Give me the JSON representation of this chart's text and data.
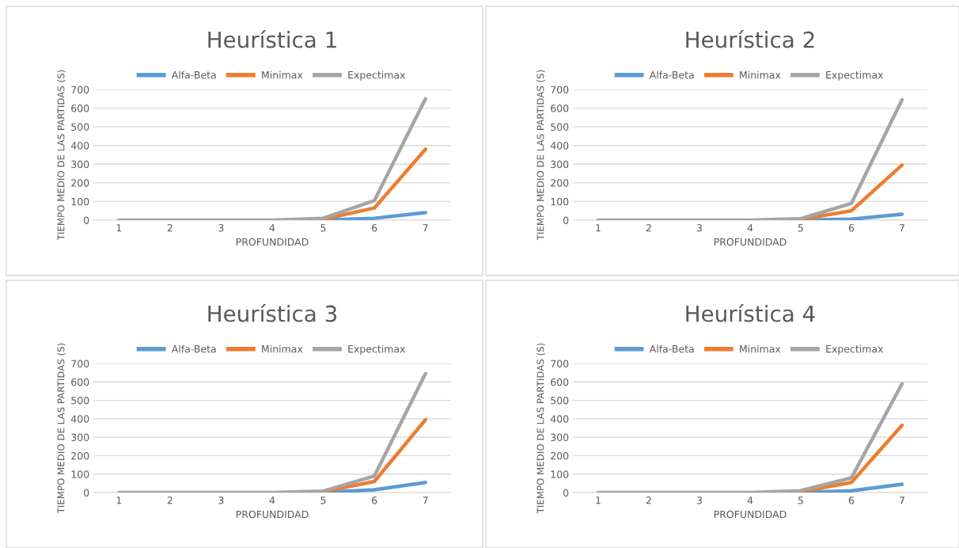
{
  "chart_data": [
    {
      "type": "line",
      "title": "Heurística 1",
      "xlabel": "PROFUNDIDAD",
      "ylabel": "TIEMPO MEDIO DE LAS PARTIDAS (S)",
      "categories": [
        "1",
        "2",
        "3",
        "4",
        "5",
        "6",
        "7"
      ],
      "ylim": [
        0,
        700
      ],
      "yticks": [
        0,
        100,
        200,
        300,
        400,
        500,
        600,
        700
      ],
      "grid": "y",
      "legend": "top",
      "marker": "none",
      "line_style": "solid",
      "series": [
        {
          "name": "Alfa-Beta",
          "color": "#5b9bd5",
          "values": [
            null,
            null,
            null,
            null,
            1,
            10,
            40
          ]
        },
        {
          "name": "Minimax",
          "color": "#ed7d31",
          "values": [
            null,
            null,
            null,
            null,
            5,
            65,
            380
          ]
        },
        {
          "name": "Expectimax",
          "color": "#a5a5a5",
          "values": [
            0,
            0,
            0,
            0,
            10,
            105,
            650
          ]
        }
      ]
    },
    {
      "type": "line",
      "title": "Heurística 2",
      "xlabel": "PROFUNDIDAD",
      "ylabel": "TIEMPO MEDIO DE LAS PARTIDAS (S)",
      "categories": [
        "1",
        "2",
        "3",
        "4",
        "5",
        "6",
        "7"
      ],
      "ylim": [
        0,
        700
      ],
      "yticks": [
        0,
        100,
        200,
        300,
        400,
        500,
        600,
        700
      ],
      "grid": "y",
      "legend": "top",
      "marker": "none",
      "line_style": "solid",
      "series": [
        {
          "name": "Alfa-Beta",
          "color": "#5b9bd5",
          "values": [
            null,
            null,
            null,
            null,
            1,
            5,
            32
          ]
        },
        {
          "name": "Minimax",
          "color": "#ed7d31",
          "values": [
            null,
            null,
            null,
            null,
            5,
            50,
            295
          ]
        },
        {
          "name": "Expectimax",
          "color": "#a5a5a5",
          "values": [
            0,
            0,
            0,
            0,
            8,
            90,
            645
          ]
        }
      ]
    },
    {
      "type": "line",
      "title": "Heurística 3",
      "xlabel": "PROFUNDIDAD",
      "ylabel": "TIEMPO MEDIO DE LAS PARTIDAS (S)",
      "categories": [
        "1",
        "2",
        "3",
        "4",
        "5",
        "6",
        "7"
      ],
      "ylim": [
        0,
        700
      ],
      "yticks": [
        0,
        100,
        200,
        300,
        400,
        500,
        600,
        700
      ],
      "grid": "y",
      "legend": "top",
      "marker": "none",
      "line_style": "solid",
      "series": [
        {
          "name": "Alfa-Beta",
          "color": "#5b9bd5",
          "values": [
            null,
            null,
            null,
            null,
            1,
            15,
            55
          ]
        },
        {
          "name": "Minimax",
          "color": "#ed7d31",
          "values": [
            null,
            null,
            null,
            null,
            5,
            60,
            395
          ]
        },
        {
          "name": "Expectimax",
          "color": "#a5a5a5",
          "values": [
            0,
            0,
            0,
            0,
            8,
            90,
            645
          ]
        }
      ]
    },
    {
      "type": "line",
      "title": "Heurística 4",
      "xlabel": "PROFUNDIDAD",
      "ylabel": "TIEMPO MEDIO DE LAS PARTIDAS (S)",
      "categories": [
        "1",
        "2",
        "3",
        "4",
        "5",
        "6",
        "7"
      ],
      "ylim": [
        0,
        700
      ],
      "yticks": [
        0,
        100,
        200,
        300,
        400,
        500,
        600,
        700
      ],
      "grid": "y",
      "legend": "top",
      "marker": "none",
      "line_style": "solid",
      "series": [
        {
          "name": "Alfa-Beta",
          "color": "#5b9bd5",
          "values": [
            null,
            null,
            null,
            null,
            1,
            10,
            45
          ]
        },
        {
          "name": "Minimax",
          "color": "#ed7d31",
          "values": [
            null,
            null,
            null,
            null,
            5,
            55,
            365
          ]
        },
        {
          "name": "Expectimax",
          "color": "#a5a5a5",
          "values": [
            0,
            0,
            0,
            0,
            10,
            80,
            590
          ]
        }
      ]
    }
  ]
}
